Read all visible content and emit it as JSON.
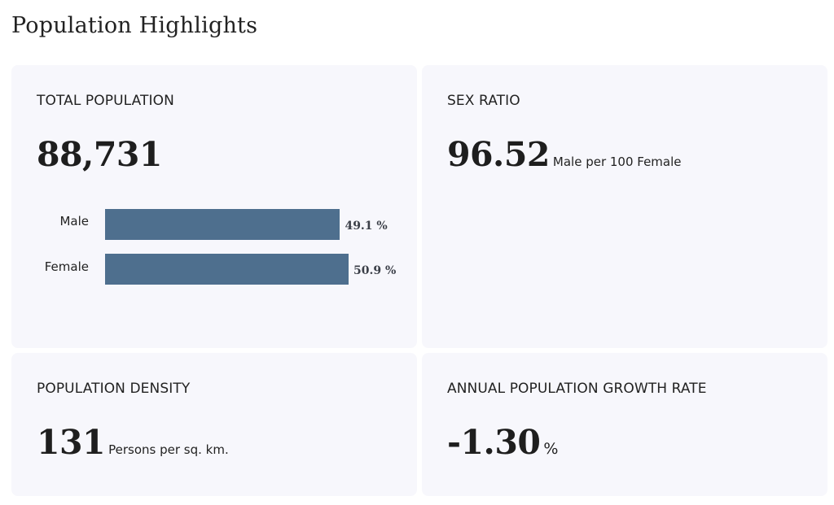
{
  "page": {
    "title": "Population Highlights"
  },
  "cards": {
    "total_population": {
      "label": "TOTAL POPULATION",
      "value": "88,731",
      "bars": [
        {
          "label": "Male",
          "percent": 49.1,
          "display": "49.1 %"
        },
        {
          "label": "Female",
          "percent": 50.9,
          "display": "50.9 %"
        }
      ]
    },
    "sex_ratio": {
      "label": "SEX RATIO",
      "value": "96.52",
      "unit": "Male per 100 Female"
    },
    "population_density": {
      "label": "POPULATION DENSITY",
      "value": "131",
      "unit": "Persons per sq. km."
    },
    "growth_rate": {
      "label": "ANNUAL POPULATION GROWTH RATE",
      "value": "-1.30",
      "unit": "%"
    }
  },
  "colors": {
    "bar": "#4e6f8e",
    "card_background": "#f7f7fc"
  }
}
